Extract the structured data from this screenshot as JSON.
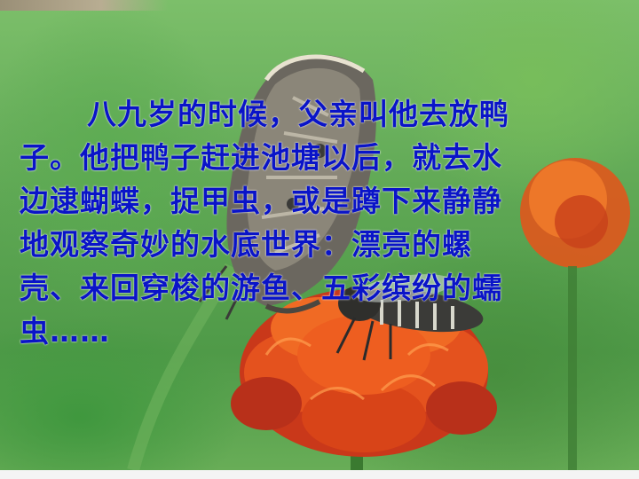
{
  "slide": {
    "paragraph": {
      "lines": [
        "八九岁的时候，父亲叫他去放鸭",
        "子。他把鸭子赶进池塘以后，就去水",
        "边逮蝴蝶，捉甲虫，或是蹲下来静静",
        "地观察奇妙的水底世界：漂亮的螺",
        "壳、来回穿梭的游鱼、五彩缤纷的蠕",
        "虫……"
      ]
    },
    "text_color": "#0a14c8"
  }
}
